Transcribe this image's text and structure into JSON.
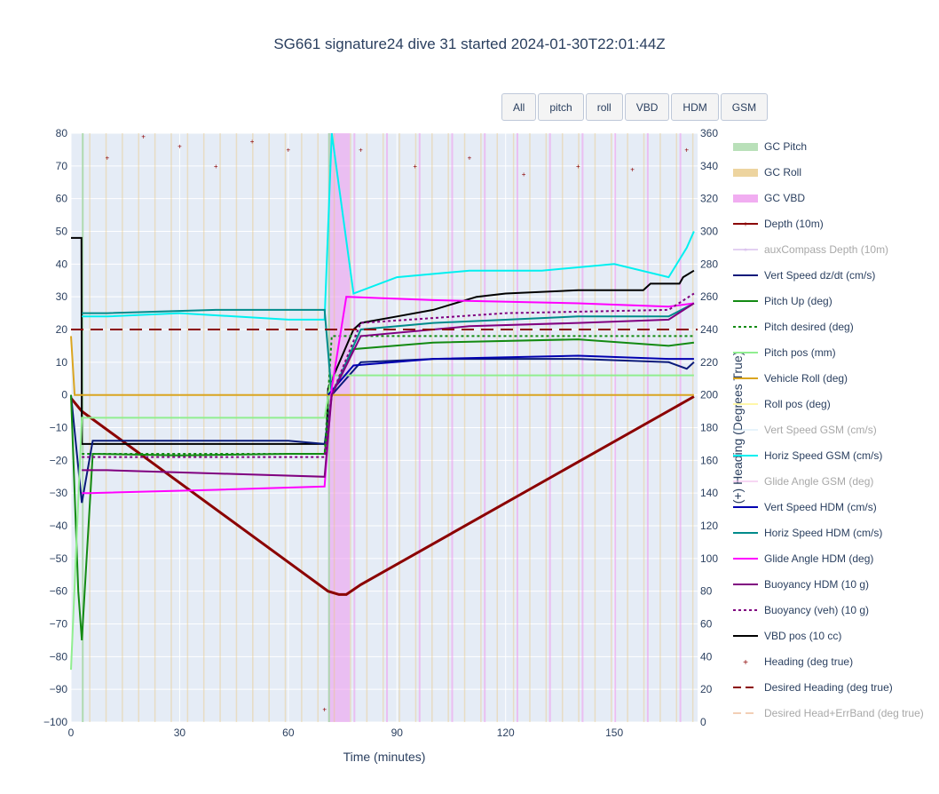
{
  "title": "SG661 signature24 dive 31 started 2024-01-30T22:01:44Z",
  "buttons": [
    "All",
    "pitch",
    "roll",
    "VBD",
    "HDM",
    "GSM"
  ],
  "chart_data": {
    "type": "line",
    "title": "SG661 signature24 dive 31 started 2024-01-30T22:01:44Z",
    "xlabel": "Time (minutes)",
    "ylabel": "",
    "y2label": "(+) Heading (Degrees True)",
    "xlim": [
      0,
      173
    ],
    "ylim": [
      -100,
      80
    ],
    "y2lim": [
      0,
      360
    ],
    "xticks": [
      0,
      30,
      60,
      90,
      120,
      150
    ],
    "yticks": [
      80,
      70,
      60,
      50,
      40,
      30,
      20,
      10,
      0,
      -10,
      -20,
      -30,
      -40,
      -50,
      -60,
      -70,
      -80,
      -90,
      -100
    ],
    "y2ticks": [
      360,
      340,
      320,
      300,
      280,
      260,
      240,
      220,
      200,
      180,
      160,
      140,
      120,
      100,
      80,
      60,
      40,
      20,
      0
    ],
    "grid": true,
    "legend_position": "right",
    "legend": [
      {
        "name": "GC Pitch",
        "color": "#a8d8a8",
        "style": "band",
        "dim": false
      },
      {
        "name": "GC Roll",
        "color": "#e8c987",
        "style": "band",
        "dim": false
      },
      {
        "name": "GC VBD",
        "color": "#ee99ee",
        "style": "band",
        "dim": false
      },
      {
        "name": "Depth (10m)",
        "color": "#8b0000",
        "style": "line-marker",
        "dim": false
      },
      {
        "name": "auxCompass Depth (10m)",
        "color": "#c9a3e6",
        "style": "line-marker",
        "dim": true
      },
      {
        "name": "Vert Speed dz/dt (cm/s)",
        "color": "#0a1a7a",
        "style": "line",
        "dim": false
      },
      {
        "name": "Pitch Up (deg)",
        "color": "#138a13",
        "style": "line",
        "dim": false
      },
      {
        "name": "Pitch desired (deg)",
        "color": "#138a13",
        "style": "dot",
        "dim": false
      },
      {
        "name": "Pitch pos (mm)",
        "color": "#90ee90",
        "style": "line",
        "dim": false
      },
      {
        "name": "Vehicle Roll (deg)",
        "color": "#daa520",
        "style": "line",
        "dim": false
      },
      {
        "name": "Roll pos (deg)",
        "color": "#fff7a8",
        "style": "line",
        "dim": false
      },
      {
        "name": "Vert Speed GSM (cm/s)",
        "color": "#d0e8f8",
        "style": "line",
        "dim": true
      },
      {
        "name": "Horiz Speed GSM (cm/s)",
        "color": "#00f0f0",
        "style": "line",
        "dim": false
      },
      {
        "name": "Glide Angle GSM (deg)",
        "color": "#f0b0e8",
        "style": "line",
        "dim": true
      },
      {
        "name": "Vert Speed HDM (cm/s)",
        "color": "#0000b0",
        "style": "line",
        "dim": false
      },
      {
        "name": "Horiz Speed HDM (cm/s)",
        "color": "#008b8b",
        "style": "line",
        "dim": false
      },
      {
        "name": "Glide Angle HDM (deg)",
        "color": "#ff00ff",
        "style": "line",
        "dim": false
      },
      {
        "name": "Buoyancy HDM (10 g)",
        "color": "#800080",
        "style": "line",
        "dim": false
      },
      {
        "name": "Buoyancy (veh) (10 g)",
        "color": "#800080",
        "style": "dot",
        "dim": false
      },
      {
        "name": "VBD pos (10 cc)",
        "color": "#000000",
        "style": "line",
        "dim": false
      },
      {
        "name": "Heading (deg true)",
        "color": "#8b0000",
        "style": "marker",
        "dim": false
      },
      {
        "name": "Desired Heading (deg true)",
        "color": "#8b0000",
        "style": "dash",
        "dim": false
      },
      {
        "name": "Desired Head+ErrBand (deg true)",
        "color": "#e8a070",
        "style": "dash",
        "dim": true
      }
    ],
    "series": [
      {
        "name": "Depth (10m)",
        "axis": "y",
        "x": [
          0,
          3,
          71,
          74,
          76,
          80,
          172
        ],
        "y": [
          -1,
          -5,
          -60,
          -61,
          -61,
          -58,
          -0.5
        ]
      },
      {
        "name": "VBD pos (10 cc)",
        "axis": "y",
        "x": [
          0,
          2.9,
          3,
          70.5,
          71,
          78,
          80,
          90,
          100,
          112,
          120,
          140,
          158,
          160,
          168,
          169,
          172
        ],
        "y": [
          48,
          48,
          -15,
          -15,
          2,
          20,
          22,
          24,
          26,
          30,
          31,
          32,
          32,
          34,
          34,
          36,
          38
        ]
      },
      {
        "name": "Vert Speed dz/dt (cm/s)",
        "axis": "y",
        "x": [
          0,
          3,
          6,
          30,
          60,
          70,
          72,
          80,
          100,
          140,
          165,
          170,
          172
        ],
        "y": [
          0,
          -33,
          -14,
          -14,
          -14,
          -15,
          0,
          10,
          11,
          11,
          10,
          8,
          10
        ]
      },
      {
        "name": "Pitch Up (deg)",
        "axis": "y",
        "x": [
          0,
          2,
          3,
          6,
          30,
          60,
          70,
          72,
          78,
          100,
          140,
          165,
          172
        ],
        "y": [
          0,
          -60,
          -75,
          -18,
          -18.5,
          -18,
          -18,
          0,
          14,
          16,
          17,
          15,
          16
        ]
      },
      {
        "name": "Pitch desired (deg)",
        "axis": "y",
        "x": [
          3,
          70,
          72,
          172
        ],
        "y": [
          -18,
          -18,
          18,
          18
        ]
      },
      {
        "name": "Pitch pos (mm)",
        "axis": "y",
        "x": [
          0,
          3,
          70,
          72,
          172
        ],
        "y": [
          -84,
          -7,
          -7,
          6,
          6
        ]
      },
      {
        "name": "Vehicle Roll (deg)",
        "axis": "y",
        "x": [
          0,
          1,
          3,
          70,
          80,
          172
        ],
        "y": [
          18,
          0,
          0,
          0,
          0,
          0
        ]
      },
      {
        "name": "Horiz Speed GSM (cm/s)",
        "axis": "y",
        "x": [
          3,
          10,
          30,
          60,
          70,
          72,
          78,
          90,
          110,
          130,
          150,
          165,
          170,
          172
        ],
        "y": [
          24,
          24,
          25,
          23,
          23,
          80,
          31,
          36,
          38,
          38,
          40,
          36,
          45,
          50
        ]
      },
      {
        "name": "Vert Speed HDM (cm/s)",
        "axis": "y",
        "x": [
          71,
          78,
          100,
          140,
          165,
          172
        ],
        "y": [
          0,
          9,
          11,
          12,
          11,
          11
        ]
      },
      {
        "name": "Horiz Speed HDM (cm/s)",
        "axis": "y",
        "x": [
          3,
          10,
          40,
          70,
          72,
          80,
          100,
          140,
          165,
          172
        ],
        "y": [
          25,
          25,
          26,
          26,
          0,
          20,
          22,
          24,
          24,
          28
        ]
      },
      {
        "name": "Glide Angle HDM (deg)",
        "axis": "y",
        "x": [
          3,
          5,
          40,
          70,
          72,
          76,
          100,
          140,
          165,
          172
        ],
        "y": [
          -30,
          -30,
          -29,
          -28,
          2,
          30,
          29,
          28,
          27,
          28
        ]
      },
      {
        "name": "Buoyancy HDM (10 g)",
        "axis": "y",
        "x": [
          3,
          10,
          40,
          70,
          72,
          80,
          110,
          140,
          165,
          172
        ],
        "y": [
          -23,
          -23,
          -24,
          -25,
          0,
          18,
          21,
          22,
          23,
          28
        ]
      },
      {
        "name": "Buoyancy (veh) (10 g)",
        "axis": "y",
        "x": [
          3,
          70,
          72,
          80,
          120,
          165,
          172
        ],
        "y": [
          -19,
          -19,
          0,
          22,
          25,
          26,
          31
        ]
      },
      {
        "name": "Heading (deg true)",
        "axis": "y2",
        "type": "scatter",
        "x": [
          10,
          20,
          30,
          40,
          50,
          60,
          70,
          80,
          95,
          110,
          125,
          140,
          155,
          170
        ],
        "y": [
          345,
          358,
          352,
          340,
          355,
          350,
          8,
          350,
          340,
          345,
          335,
          340,
          338,
          350
        ]
      },
      {
        "name": "Desired Heading (deg true)",
        "axis": "y2",
        "x": [
          0,
          173
        ],
        "y": [
          240,
          240
        ]
      }
    ]
  }
}
